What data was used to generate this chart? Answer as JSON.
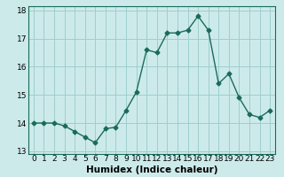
{
  "x": [
    0,
    1,
    2,
    3,
    4,
    5,
    6,
    7,
    8,
    9,
    10,
    11,
    12,
    13,
    14,
    15,
    16,
    17,
    18,
    19,
    20,
    21,
    22,
    23
  ],
  "y": [
    14.0,
    14.0,
    14.0,
    13.9,
    13.7,
    13.5,
    13.3,
    13.8,
    13.85,
    14.45,
    15.1,
    16.6,
    16.5,
    17.2,
    17.2,
    17.3,
    17.8,
    17.3,
    15.4,
    15.75,
    14.9,
    14.3,
    14.2,
    14.45
  ],
  "line_color": "#1a6b5a",
  "marker": "D",
  "marker_size": 2.5,
  "bg_color": "#cdeaea",
  "grid_color": "#9ecece",
  "xlabel": "Humidex (Indice chaleur)",
  "ylim": [
    12.9,
    18.15
  ],
  "xlim": [
    -0.5,
    23.5
  ],
  "yticks": [
    13,
    14,
    15,
    16,
    17,
    18
  ],
  "xtick_labels": [
    "0",
    "1",
    "2",
    "3",
    "4",
    "5",
    "6",
    "7",
    "8",
    "9",
    "10",
    "11",
    "12",
    "13",
    "14",
    "15",
    "16",
    "17",
    "18",
    "19",
    "20",
    "21",
    "22",
    "23"
  ],
  "xlabel_fontsize": 7.5,
  "tick_fontsize": 6.5,
  "line_width": 1.0
}
